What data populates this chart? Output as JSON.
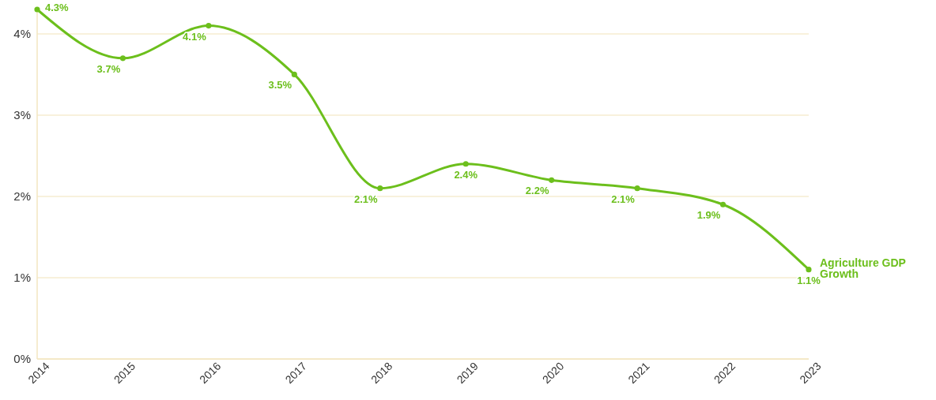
{
  "chart_data": {
    "type": "line",
    "categories": [
      "2014",
      "2015",
      "2016",
      "2017",
      "2018",
      "2019",
      "2020",
      "2021",
      "2022",
      "2023"
    ],
    "series": [
      {
        "name": "Agriculture GDP Growth",
        "color": "#6cbf1c",
        "values": [
          4.3,
          3.7,
          4.1,
          3.5,
          2.1,
          2.4,
          2.2,
          2.1,
          1.9,
          1.1
        ],
        "value_labels": [
          "4.3%",
          "3.7%",
          "4.1%",
          "3.5%",
          "2.1%",
          "2.4%",
          "2.2%",
          "2.1%",
          "1.9%",
          "1.1%"
        ]
      }
    ],
    "ylim": [
      0,
      4.3
    ],
    "yticks": [
      {
        "value": 0,
        "label": "0%"
      },
      {
        "value": 1,
        "label": "1%"
      },
      {
        "value": 2,
        "label": "2%"
      },
      {
        "value": 3,
        "label": "3%"
      },
      {
        "value": 4,
        "label": "4%"
      }
    ],
    "grid": "y",
    "marker": "circle",
    "line_style": "solid"
  }
}
